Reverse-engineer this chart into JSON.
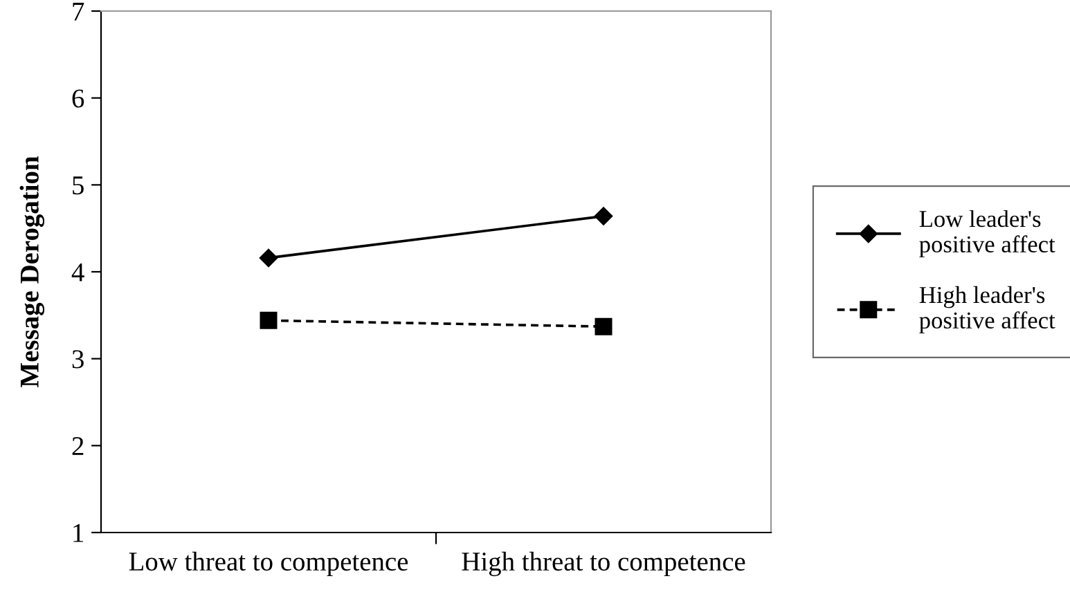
{
  "chart_data": {
    "type": "line",
    "ylabel": "Message Derogation",
    "categories": [
      "Low threat to competence",
      "High threat to competence"
    ],
    "series": [
      {
        "name": "Low leader's positive affect",
        "color": "#000000",
        "values": [
          4.16,
          4.64
        ],
        "marker": "diamond",
        "line_style": "solid"
      },
      {
        "name": "High leader's positive affect",
        "color": "#000000",
        "values": [
          3.44,
          3.37
        ],
        "marker": "square",
        "line_style": "dashed"
      }
    ],
    "ylim": [
      1,
      7
    ],
    "yticks": [
      1,
      2,
      3,
      4,
      5,
      6,
      7
    ],
    "grid": false,
    "legend": "right"
  }
}
